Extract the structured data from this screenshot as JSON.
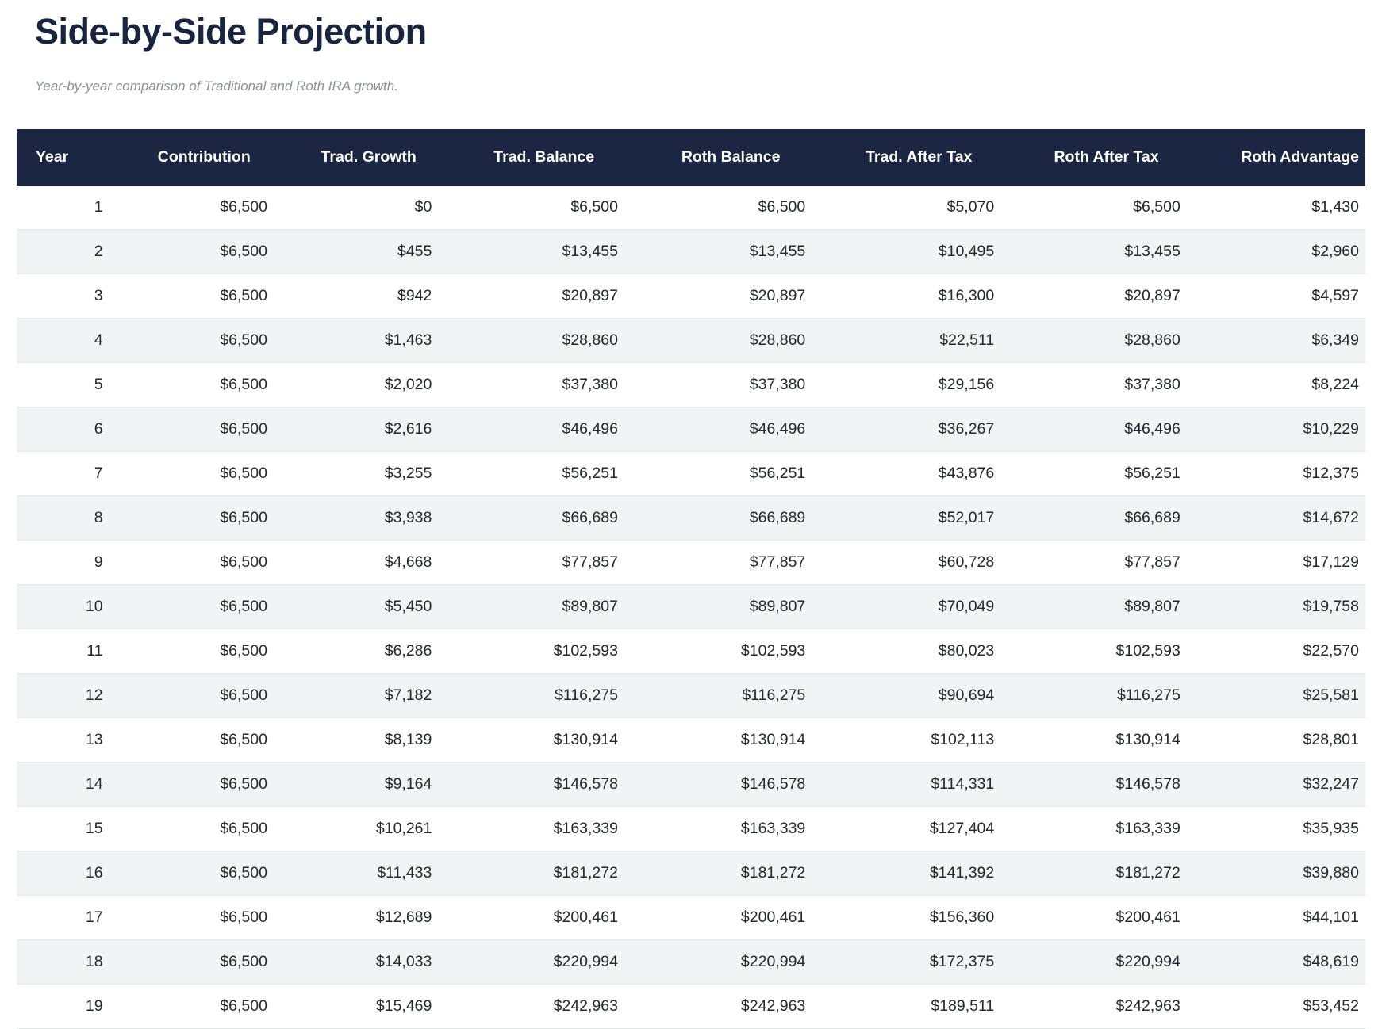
{
  "page": {
    "title": "Side-by-Side Projection",
    "subtitle": "Year-by-year comparison of Traditional and Roth IRA growth."
  },
  "colors": {
    "header_bg": "#1a2642",
    "header_text": "#ffffff",
    "title_text": "#19243e",
    "subtitle_text": "#8b9199",
    "row_stripe": "#f1f3f5",
    "row_border": "#e3e6ea",
    "cell_text": "#23272e",
    "page_bg": "#ffffff"
  },
  "table": {
    "columns": [
      "Year",
      "Contribution",
      "Trad. Growth",
      "Trad. Balance",
      "Roth Balance",
      "Trad. After Tax",
      "Roth After Tax",
      "Roth Advantage"
    ],
    "rows": [
      [
        "1",
        "$6,500",
        "$0",
        "$6,500",
        "$6,500",
        "$5,070",
        "$6,500",
        "$1,430"
      ],
      [
        "2",
        "$6,500",
        "$455",
        "$13,455",
        "$13,455",
        "$10,495",
        "$13,455",
        "$2,960"
      ],
      [
        "3",
        "$6,500",
        "$942",
        "$20,897",
        "$20,897",
        "$16,300",
        "$20,897",
        "$4,597"
      ],
      [
        "4",
        "$6,500",
        "$1,463",
        "$28,860",
        "$28,860",
        "$22,511",
        "$28,860",
        "$6,349"
      ],
      [
        "5",
        "$6,500",
        "$2,020",
        "$37,380",
        "$37,380",
        "$29,156",
        "$37,380",
        "$8,224"
      ],
      [
        "6",
        "$6,500",
        "$2,616",
        "$46,496",
        "$46,496",
        "$36,267",
        "$46,496",
        "$10,229"
      ],
      [
        "7",
        "$6,500",
        "$3,255",
        "$56,251",
        "$56,251",
        "$43,876",
        "$56,251",
        "$12,375"
      ],
      [
        "8",
        "$6,500",
        "$3,938",
        "$66,689",
        "$66,689",
        "$52,017",
        "$66,689",
        "$14,672"
      ],
      [
        "9",
        "$6,500",
        "$4,668",
        "$77,857",
        "$77,857",
        "$60,728",
        "$77,857",
        "$17,129"
      ],
      [
        "10",
        "$6,500",
        "$5,450",
        "$89,807",
        "$89,807",
        "$70,049",
        "$89,807",
        "$19,758"
      ],
      [
        "11",
        "$6,500",
        "$6,286",
        "$102,593",
        "$102,593",
        "$80,023",
        "$102,593",
        "$22,570"
      ],
      [
        "12",
        "$6,500",
        "$7,182",
        "$116,275",
        "$116,275",
        "$90,694",
        "$116,275",
        "$25,581"
      ],
      [
        "13",
        "$6,500",
        "$8,139",
        "$130,914",
        "$130,914",
        "$102,113",
        "$130,914",
        "$28,801"
      ],
      [
        "14",
        "$6,500",
        "$9,164",
        "$146,578",
        "$146,578",
        "$114,331",
        "$146,578",
        "$32,247"
      ],
      [
        "15",
        "$6,500",
        "$10,261",
        "$163,339",
        "$163,339",
        "$127,404",
        "$163,339",
        "$35,935"
      ],
      [
        "16",
        "$6,500",
        "$11,433",
        "$181,272",
        "$181,272",
        "$141,392",
        "$181,272",
        "$39,880"
      ],
      [
        "17",
        "$6,500",
        "$12,689",
        "$200,461",
        "$200,461",
        "$156,360",
        "$200,461",
        "$44,101"
      ],
      [
        "18",
        "$6,500",
        "$14,033",
        "$220,994",
        "$220,994",
        "$172,375",
        "$220,994",
        "$48,619"
      ],
      [
        "19",
        "$6,500",
        "$15,469",
        "$242,963",
        "$242,963",
        "$189,511",
        "$242,963",
        "$53,452"
      ]
    ]
  }
}
